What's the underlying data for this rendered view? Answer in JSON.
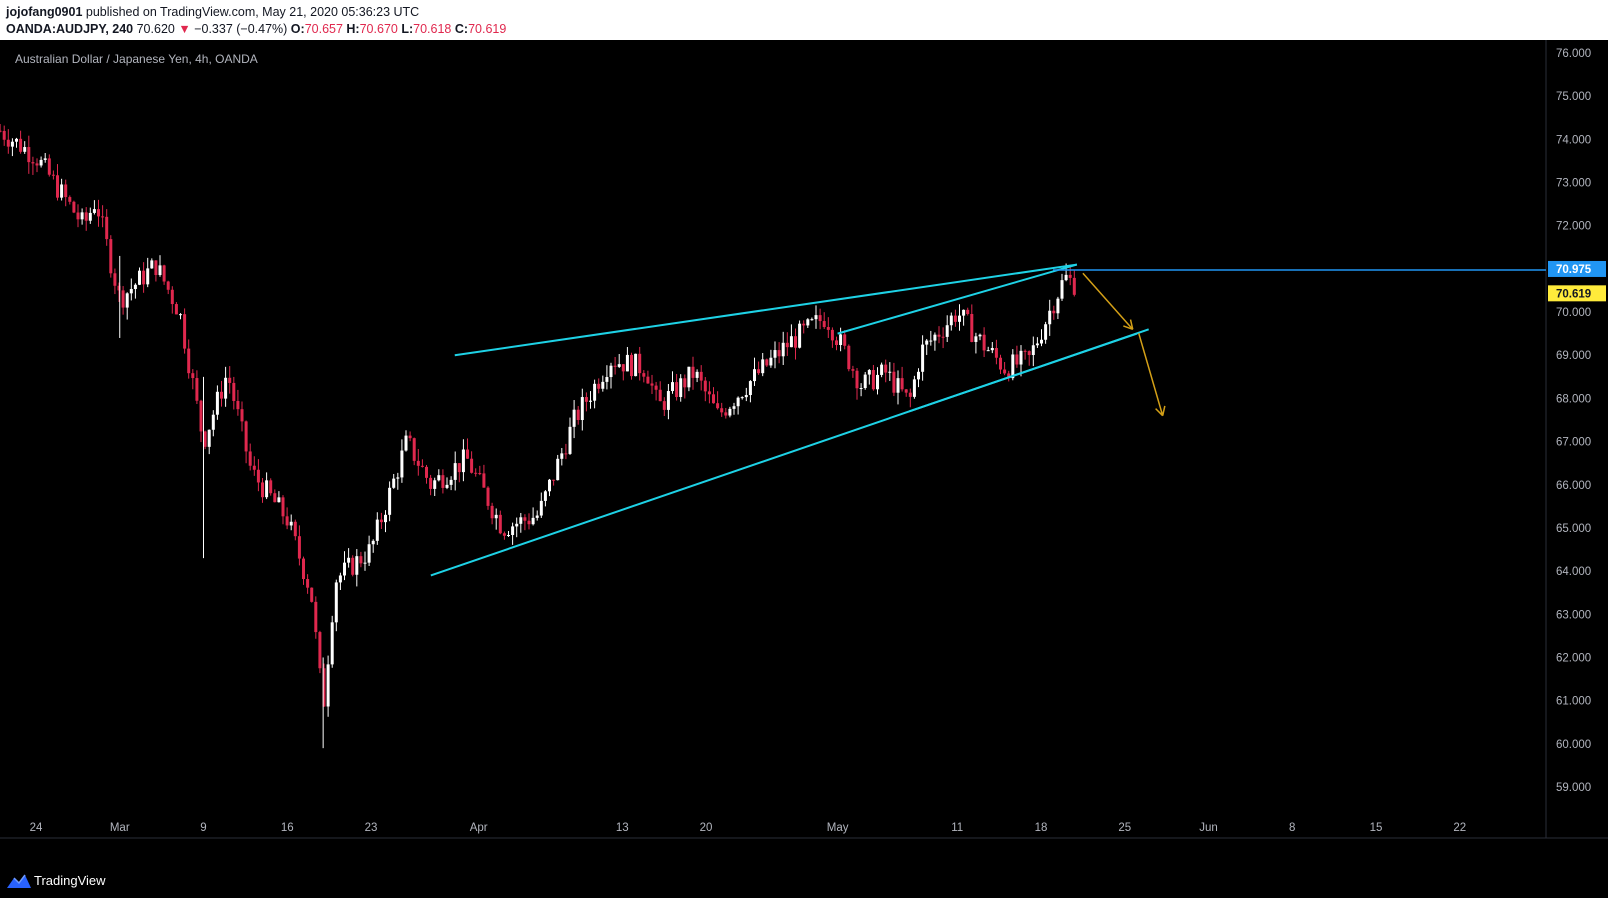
{
  "header": {
    "author": "jojofang0901",
    "published": "published on TradingView.com, May 21, 2020 05:36:23 UTC",
    "symbol": "OANDA:AUDJPY, 240",
    "last": "70.620",
    "change_arrow": "▼",
    "change": "−0.337 (−0.47%)",
    "o_label": "O:",
    "o_value": "70.657",
    "h_label": "H:",
    "h_value": "70.670",
    "l_label": "L:",
    "l_value": "70.618",
    "c_label": "C:",
    "c_value": "70.619"
  },
  "footer": {
    "brand": "TradingView",
    "logo_icon": "tradingview-logo-icon"
  },
  "colors": {
    "up": "#ffffff",
    "down": "#e0284e",
    "trend": "#1ed2e6",
    "projection": "#d4a017",
    "hline": "#2196f3",
    "axis_text": "#b2b5be",
    "bg": "#000000"
  },
  "chart_data": {
    "type": "candlestick",
    "title": "Australian Dollar / Japanese Yen, 4h, OANDA",
    "y_axis": {
      "position": "right",
      "ticks": [
        "76.000",
        "75.000",
        "74.000",
        "73.000",
        "72.000",
        "71.000",
        "70.000",
        "69.000",
        "68.000",
        "67.000",
        "66.000",
        "65.000",
        "64.000",
        "63.000",
        "62.000",
        "61.000",
        "60.000",
        "59.000"
      ],
      "range": [
        58.7,
        76.3
      ]
    },
    "x_axis": {
      "ticks": [
        {
          "label": "24",
          "date": "2020-02-24"
        },
        {
          "label": "Mar",
          "date": "2020-03-02"
        },
        {
          "label": "9",
          "date": "2020-03-09"
        },
        {
          "label": "16",
          "date": "2020-03-16"
        },
        {
          "label": "23",
          "date": "2020-03-23"
        },
        {
          "label": "Apr",
          "date": "2020-04-01"
        },
        {
          "label": "13",
          "date": "2020-04-13"
        },
        {
          "label": "20",
          "date": "2020-04-20"
        },
        {
          "label": "May",
          "date": "2020-05-01"
        },
        {
          "label": "11",
          "date": "2020-05-11"
        },
        {
          "label": "18",
          "date": "2020-05-18"
        },
        {
          "label": "25",
          "date": "2020-05-25"
        },
        {
          "label": "Jun",
          "date": "2020-06-01"
        },
        {
          "label": "8",
          "date": "2020-06-08"
        },
        {
          "label": "15",
          "date": "2020-06-15"
        },
        {
          "label": "22",
          "date": "2020-06-22"
        }
      ]
    },
    "price_path": [
      {
        "date": "2020-02-21",
        "price": 74.2
      },
      {
        "date": "2020-02-24",
        "price": 73.6
      },
      {
        "date": "2020-02-26",
        "price": 72.8
      },
      {
        "date": "2020-02-28",
        "price": 72.0
      },
      {
        "date": "2020-02-29",
        "price": 72.6
      },
      {
        "date": "2020-03-02",
        "price": 70.3
      },
      {
        "date": "2020-03-05",
        "price": 71.1
      },
      {
        "date": "2020-03-07",
        "price": 70.0
      },
      {
        "date": "2020-03-09",
        "price": 67.0
      },
      {
        "date": "2020-03-11",
        "price": 68.6
      },
      {
        "date": "2020-03-13",
        "price": 66.3
      },
      {
        "date": "2020-03-16",
        "price": 65.2
      },
      {
        "date": "2020-03-18",
        "price": 63.5
      },
      {
        "date": "2020-03-19",
        "price": 60.8
      },
      {
        "date": "2020-03-20",
        "price": 63.8
      },
      {
        "date": "2020-03-23",
        "price": 64.5
      },
      {
        "date": "2020-03-26",
        "price": 67.0
      },
      {
        "date": "2020-03-28",
        "price": 66.0
      },
      {
        "date": "2020-03-31",
        "price": 66.6
      },
      {
        "date": "2020-04-03",
        "price": 65.0
      },
      {
        "date": "2020-04-06",
        "price": 65.3
      },
      {
        "date": "2020-04-09",
        "price": 67.5
      },
      {
        "date": "2020-04-12",
        "price": 68.9
      },
      {
        "date": "2020-04-15",
        "price": 68.7
      },
      {
        "date": "2020-04-16",
        "price": 67.8
      },
      {
        "date": "2020-04-19",
        "price": 68.6
      },
      {
        "date": "2020-04-21",
        "price": 67.6
      },
      {
        "date": "2020-04-23",
        "price": 68.2
      },
      {
        "date": "2020-04-27",
        "price": 69.3
      },
      {
        "date": "2020-04-30",
        "price": 69.9
      },
      {
        "date": "2020-05-01",
        "price": 69.4
      },
      {
        "date": "2020-05-03",
        "price": 68.3
      },
      {
        "date": "2020-05-05",
        "price": 68.6
      },
      {
        "date": "2020-05-07",
        "price": 67.9
      },
      {
        "date": "2020-05-08",
        "price": 69.1
      },
      {
        "date": "2020-05-11",
        "price": 70.0
      },
      {
        "date": "2020-05-13",
        "price": 69.3
      },
      {
        "date": "2020-05-15",
        "price": 68.7
      },
      {
        "date": "2020-05-17",
        "price": 68.9
      },
      {
        "date": "2020-05-19",
        "price": 70.2
      },
      {
        "date": "2020-05-20",
        "price": 70.8
      },
      {
        "date": "2020-05-21",
        "price": 70.62
      }
    ],
    "price_labels": [
      {
        "value": "70.975",
        "role": "horizontal-line"
      },
      {
        "value": "70.619",
        "role": "last-price"
      }
    ],
    "drawings": {
      "trendlines": [
        {
          "from": {
            "date": "2020-03-30",
            "price": 69.0
          },
          "to": {
            "date": "2020-05-21",
            "price": 71.1
          }
        },
        {
          "from": {
            "date": "2020-05-01",
            "price": 69.5
          },
          "to": {
            "date": "2020-05-21",
            "price": 71.1
          }
        },
        {
          "from": {
            "date": "2020-03-28",
            "price": 63.9
          },
          "to": {
            "date": "2020-05-27",
            "price": 69.6
          }
        },
        {
          "from": {
            "date": "2020-05-07",
            "price": 67.7
          },
          "to": {
            "date": "2020-05-26",
            "price": 69.5
          }
        }
      ],
      "horizontal_line": {
        "price": 70.975,
        "from_date": "2020-05-19"
      },
      "projection": [
        {
          "date": "2020-05-21",
          "price": 70.9
        },
        {
          "date": "2020-05-25",
          "price": 69.6
        },
        {
          "date": "2020-05-27",
          "price": 67.6
        }
      ]
    }
  }
}
